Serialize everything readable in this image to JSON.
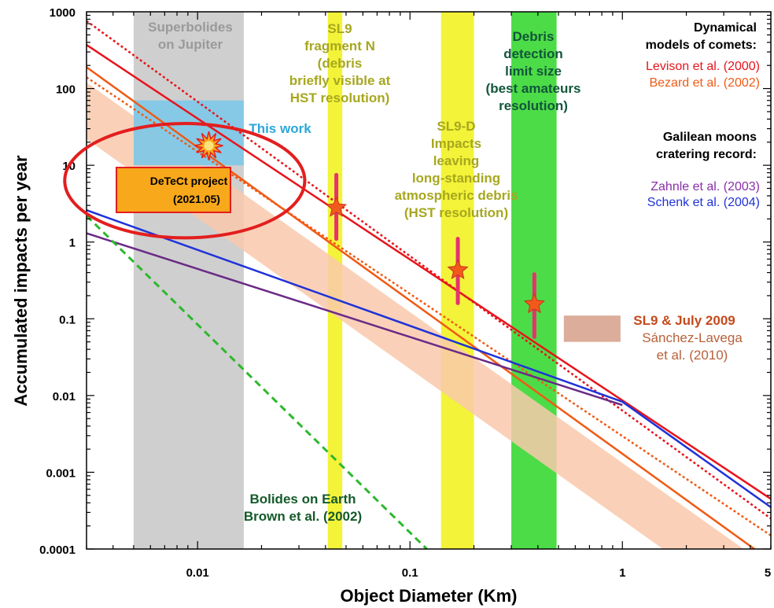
{
  "chart_data": {
    "type": "line",
    "xscale": "log",
    "yscale": "log",
    "xlim": [
      0.003,
      5
    ],
    "ylim": [
      0.0001,
      1000
    ],
    "xlabel": "Object Diameter (Km)",
    "ylabel": "Accumulated impacts per year",
    "x_ticks": [
      {
        "value": 0.01,
        "label": "0.01"
      },
      {
        "value": 0.1,
        "label": "0.1"
      },
      {
        "value": 1,
        "label": "1"
      },
      {
        "value": 5,
        "label": "5"
      }
    ],
    "y_ticks": [
      {
        "value": 1000,
        "label": "1000"
      },
      {
        "value": 100,
        "label": "100"
      },
      {
        "value": 10,
        "label": "10"
      },
      {
        "value": 1,
        "label": "1"
      },
      {
        "value": 0.1,
        "label": "0.1"
      },
      {
        "value": 0.01,
        "label": "0.01"
      },
      {
        "value": 0.001,
        "label": "0.001"
      },
      {
        "value": 0.0001,
        "label": "0.0001"
      }
    ],
    "series": [
      {
        "key": "levison-solid",
        "color": "#e8141c",
        "dash": "solid",
        "x": [
          0.003,
          5
        ],
        "y": [
          370,
          0.00045
        ]
      },
      {
        "key": "levison-dotted",
        "color": "#e8141c",
        "dash": "dotted",
        "x": [
          0.003,
          5
        ],
        "y": [
          760,
          0.00025
        ]
      },
      {
        "key": "bezard-solid",
        "color": "#f05a14",
        "dash": "solid",
        "x": [
          0.003,
          5
        ],
        "y": [
          190,
          7e-05
        ]
      },
      {
        "key": "bezard-dotted",
        "color": "#f05a14",
        "dash": "dotted",
        "x": [
          0.003,
          5
        ],
        "y": [
          140,
          0.00015
        ]
      },
      {
        "key": "zahnle",
        "color": "#6a2a86",
        "dash": "solid",
        "x": [
          0.003,
          1
        ],
        "y": [
          1.3,
          0.0075
        ]
      },
      {
        "key": "schenk",
        "color": "#1f32d8",
        "dash": "solid",
        "x": [
          0.003,
          1,
          5
        ],
        "y": [
          2.6,
          0.0083,
          0.00035
        ]
      },
      {
        "key": "brown-bolides",
        "color": "#2db82d",
        "dash": "dashed",
        "x": [
          0.003,
          0.12
        ],
        "y": [
          2.2,
          0.0001
        ]
      }
    ],
    "bands": [
      {
        "key": "shaded-band",
        "color": "#f9c9ab",
        "x": [
          0.003,
          5
        ],
        "y_upper": [
          120,
          5.6e-05
        ],
        "y_lower": [
          22,
          1e-05
        ]
      }
    ],
    "vertical_regions": [
      {
        "key": "superbolides",
        "color": "#cfcfcf",
        "x": [
          0.005,
          0.0165
        ]
      },
      {
        "key": "sl9-n",
        "color": "#f3f339",
        "x": [
          0.041,
          0.048
        ]
      },
      {
        "key": "sl9-d",
        "color": "#f3f339",
        "x": [
          0.14,
          0.2
        ]
      },
      {
        "key": "debris-detection",
        "color": "#4cdc47",
        "x": [
          0.3,
          0.49
        ]
      }
    ],
    "rectangles": [
      {
        "key": "this-work",
        "color": "#7dc8e8",
        "x": [
          0.005,
          0.0165
        ],
        "y": [
          10,
          70
        ]
      },
      {
        "key": "sl9-july-2009",
        "color": "#d8a48f",
        "x": [
          0.53,
          0.98
        ],
        "y": [
          0.05,
          0.11
        ]
      }
    ],
    "points": [
      {
        "key": "sl9-n-point",
        "x": 0.045,
        "y": 2.8,
        "y_err": [
          1.1,
          7.5
        ]
      },
      {
        "key": "sl9-d-point",
        "x": 0.168,
        "y": 0.43,
        "y_err": [
          0.16,
          1.1
        ]
      },
      {
        "key": "debris-point",
        "x": 0.385,
        "y": 0.155,
        "y_err": [
          0.058,
          0.38
        ]
      }
    ],
    "impact_marker": {
      "x": 0.0113,
      "y": 18,
      "color": "#f7a81b"
    },
    "highlight_circle": {
      "cx": 0.0087,
      "cy": 6.3,
      "r_decades_x": 0.565,
      "r_decades_y": 0.745,
      "color": "#e31e1e"
    },
    "annotations": {
      "superbolides": [
        "Superbolides",
        "on Jupiter"
      ],
      "this_work": "This work",
      "sl9_fragment_n": [
        "SL9",
        "fragment N",
        "(debris",
        "briefly visible at",
        "HST resolution)"
      ],
      "sl9_d": [
        "SL9-D",
        "Impacts",
        "leaving",
        "long-standing",
        "atmospheric debris",
        "(HST resolution)"
      ],
      "debris_detection": [
        "Debris",
        "detection",
        "limit size",
        "(best amateurs",
        "resolution)"
      ],
      "dynamical_header": [
        "Dynamical",
        "models of comets:"
      ],
      "levison": "Levison et al. (2000)",
      "bezard": "Bezard et al. (2002)",
      "galilean_header": [
        "Galilean moons",
        "cratering record:"
      ],
      "zahnle": "Zahnle et al. (2003)",
      "schenk": "Schenk et al. (2004)",
      "sl9_july_2009": "SL9 & July 2009",
      "sanchez_lavega": [
        "Sánchez-Lavega",
        "et al. (2010)"
      ],
      "bolides_earth": [
        "Bolides on Earth",
        "Brown et al. (2002)"
      ],
      "detect_project": [
        "DeTeCt project",
        "(2021.05)"
      ]
    },
    "colors": {
      "superbolides_text": "#9a9a9a",
      "this_work_text": "#2aa7d8",
      "olive_text": "#a7a720",
      "debris_text": "#12563a",
      "levison_text": "#e8141c",
      "bezard_text": "#f05a14",
      "zahnle_text": "#8a2fa8",
      "schenk_text": "#1f32d8",
      "sl9_2009_text": "#c44a1c",
      "sanchez_text": "#b8613a",
      "bolides_text": "#155a2a",
      "detect_box": "#f7a81b",
      "point_marker": "#f05a1c",
      "error_bar": "#e6326e"
    }
  }
}
